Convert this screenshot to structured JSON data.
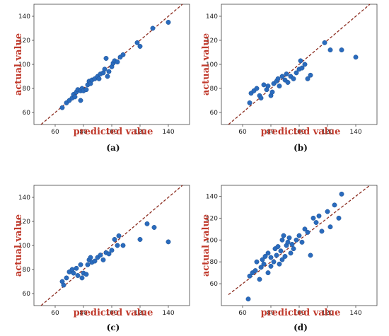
{
  "colors": {
    "point": "#2a6bbd",
    "point_edge": "#1d4f91",
    "diagonal": "#8b2b1e",
    "axis_label": "#c0392b",
    "frame": "#444444"
  },
  "chart_data": [
    {
      "type": "scatter",
      "panel_label": "(a)",
      "xlabel": "predicted value",
      "ylabel": "actual value",
      "xlim": [
        45,
        155
      ],
      "ylim": [
        50,
        150
      ],
      "xticks": [
        60,
        80,
        100,
        120,
        140
      ],
      "yticks": [
        60,
        80,
        100,
        120,
        140
      ],
      "reference_line": "y = x (dashed)",
      "points": [
        [
          65,
          64
        ],
        [
          68,
          68
        ],
        [
          70,
          70
        ],
        [
          72,
          72
        ],
        [
          73,
          75
        ],
        [
          74,
          73
        ],
        [
          75,
          77
        ],
        [
          76,
          79
        ],
        [
          78,
          70
        ],
        [
          78,
          78
        ],
        [
          79,
          80
        ],
        [
          80,
          78
        ],
        [
          82,
          79
        ],
        [
          83,
          83
        ],
        [
          84,
          86
        ],
        [
          85,
          84
        ],
        [
          86,
          87
        ],
        [
          88,
          88
        ],
        [
          90,
          90
        ],
        [
          91,
          88
        ],
        [
          92,
          92
        ],
        [
          94,
          93
        ],
        [
          95,
          96
        ],
        [
          96,
          105
        ],
        [
          97,
          90
        ],
        [
          98,
          94
        ],
        [
          100,
          98
        ],
        [
          101,
          101
        ],
        [
          102,
          103
        ],
        [
          104,
          102
        ],
        [
          106,
          106
        ],
        [
          108,
          108
        ],
        [
          118,
          118
        ],
        [
          120,
          115
        ],
        [
          129,
          130
        ],
        [
          140,
          135
        ]
      ]
    },
    {
      "type": "scatter",
      "panel_label": "(b)",
      "xlabel": "predicted value",
      "ylabel": "actual value",
      "xlim": [
        45,
        155
      ],
      "ylim": [
        50,
        150
      ],
      "xticks": [
        60,
        80,
        100,
        120,
        140
      ],
      "yticks": [
        60,
        80,
        100,
        120,
        140
      ],
      "reference_line": "y = x (dashed)",
      "points": [
        [
          65,
          68
        ],
        [
          66,
          76
        ],
        [
          68,
          78
        ],
        [
          70,
          80
        ],
        [
          72,
          74
        ],
        [
          73,
          72
        ],
        [
          75,
          83
        ],
        [
          77,
          79
        ],
        [
          78,
          82
        ],
        [
          80,
          74
        ],
        [
          81,
          77
        ],
        [
          82,
          84
        ],
        [
          84,
          86
        ],
        [
          85,
          88
        ],
        [
          86,
          82
        ],
        [
          88,
          90
        ],
        [
          90,
          87
        ],
        [
          91,
          92
        ],
        [
          92,
          85
        ],
        [
          94,
          90
        ],
        [
          96,
          88
        ],
        [
          98,
          93
        ],
        [
          100,
          96
        ],
        [
          101,
          103
        ],
        [
          102,
          97
        ],
        [
          104,
          100
        ],
        [
          106,
          88
        ],
        [
          108,
          91
        ],
        [
          118,
          118
        ],
        [
          122,
          112
        ],
        [
          130,
          112
        ],
        [
          140,
          106
        ]
      ]
    },
    {
      "type": "scatter",
      "panel_label": "(c)",
      "xlabel": "predicted value",
      "ylabel": "actual value",
      "xlim": [
        45,
        155
      ],
      "ylim": [
        50,
        150
      ],
      "xticks": [
        60,
        80,
        100,
        120,
        140
      ],
      "yticks": [
        60,
        80,
        100,
        120,
        140
      ],
      "reference_line": "y = x (dashed)",
      "points": [
        [
          65,
          70
        ],
        [
          66,
          67
        ],
        [
          68,
          73
        ],
        [
          70,
          78
        ],
        [
          72,
          80
        ],
        [
          73,
          77
        ],
        [
          75,
          81
        ],
        [
          76,
          75
        ],
        [
          78,
          84
        ],
        [
          79,
          73
        ],
        [
          80,
          77
        ],
        [
          82,
          76
        ],
        [
          83,
          84
        ],
        [
          84,
          88
        ],
        [
          85,
          90
        ],
        [
          86,
          86
        ],
        [
          88,
          87
        ],
        [
          90,
          90
        ],
        [
          92,
          92
        ],
        [
          94,
          88
        ],
        [
          96,
          94
        ],
        [
          98,
          93
        ],
        [
          100,
          96
        ],
        [
          102,
          105
        ],
        [
          104,
          100
        ],
        [
          105,
          108
        ],
        [
          108,
          100
        ],
        [
          120,
          105
        ],
        [
          125,
          118
        ],
        [
          130,
          115
        ],
        [
          140,
          103
        ]
      ]
    },
    {
      "type": "scatter",
      "panel_label": "(d)",
      "xlabel": "predicted value",
      "ylabel": "actual value",
      "xlim": [
        45,
        155
      ],
      "ylim": [
        40,
        150
      ],
      "xticks": [
        60,
        80,
        100,
        120,
        140
      ],
      "yticks": [
        60,
        80,
        100,
        120,
        140
      ],
      "reference_line": "y = x (dashed)",
      "points": [
        [
          64,
          46
        ],
        [
          65,
          67
        ],
        [
          67,
          70
        ],
        [
          69,
          72
        ],
        [
          70,
          80
        ],
        [
          72,
          64
        ],
        [
          73,
          75
        ],
        [
          74,
          82
        ],
        [
          75,
          78
        ],
        [
          76,
          85
        ],
        [
          78,
          70
        ],
        [
          78,
          88
        ],
        [
          80,
          76
        ],
        [
          80,
          84
        ],
        [
          82,
          80
        ],
        [
          83,
          92
        ],
        [
          84,
          86
        ],
        [
          85,
          94
        ],
        [
          86,
          78
        ],
        [
          87,
          90
        ],
        [
          88,
          82
        ],
        [
          88,
          100
        ],
        [
          89,
          104
        ],
        [
          90,
          85
        ],
        [
          91,
          95
        ],
        [
          92,
          98
        ],
        [
          93,
          102
        ],
        [
          94,
          88
        ],
        [
          95,
          96
        ],
        [
          96,
          92
        ],
        [
          98,
          100
        ],
        [
          100,
          104
        ],
        [
          102,
          98
        ],
        [
          104,
          110
        ],
        [
          106,
          107
        ],
        [
          108,
          86
        ],
        [
          110,
          120
        ],
        [
          112,
          116
        ],
        [
          114,
          122
        ],
        [
          116,
          108
        ],
        [
          120,
          126
        ],
        [
          125,
          132
        ],
        [
          128,
          120
        ],
        [
          130,
          142
        ],
        [
          122,
          112
        ]
      ]
    }
  ]
}
